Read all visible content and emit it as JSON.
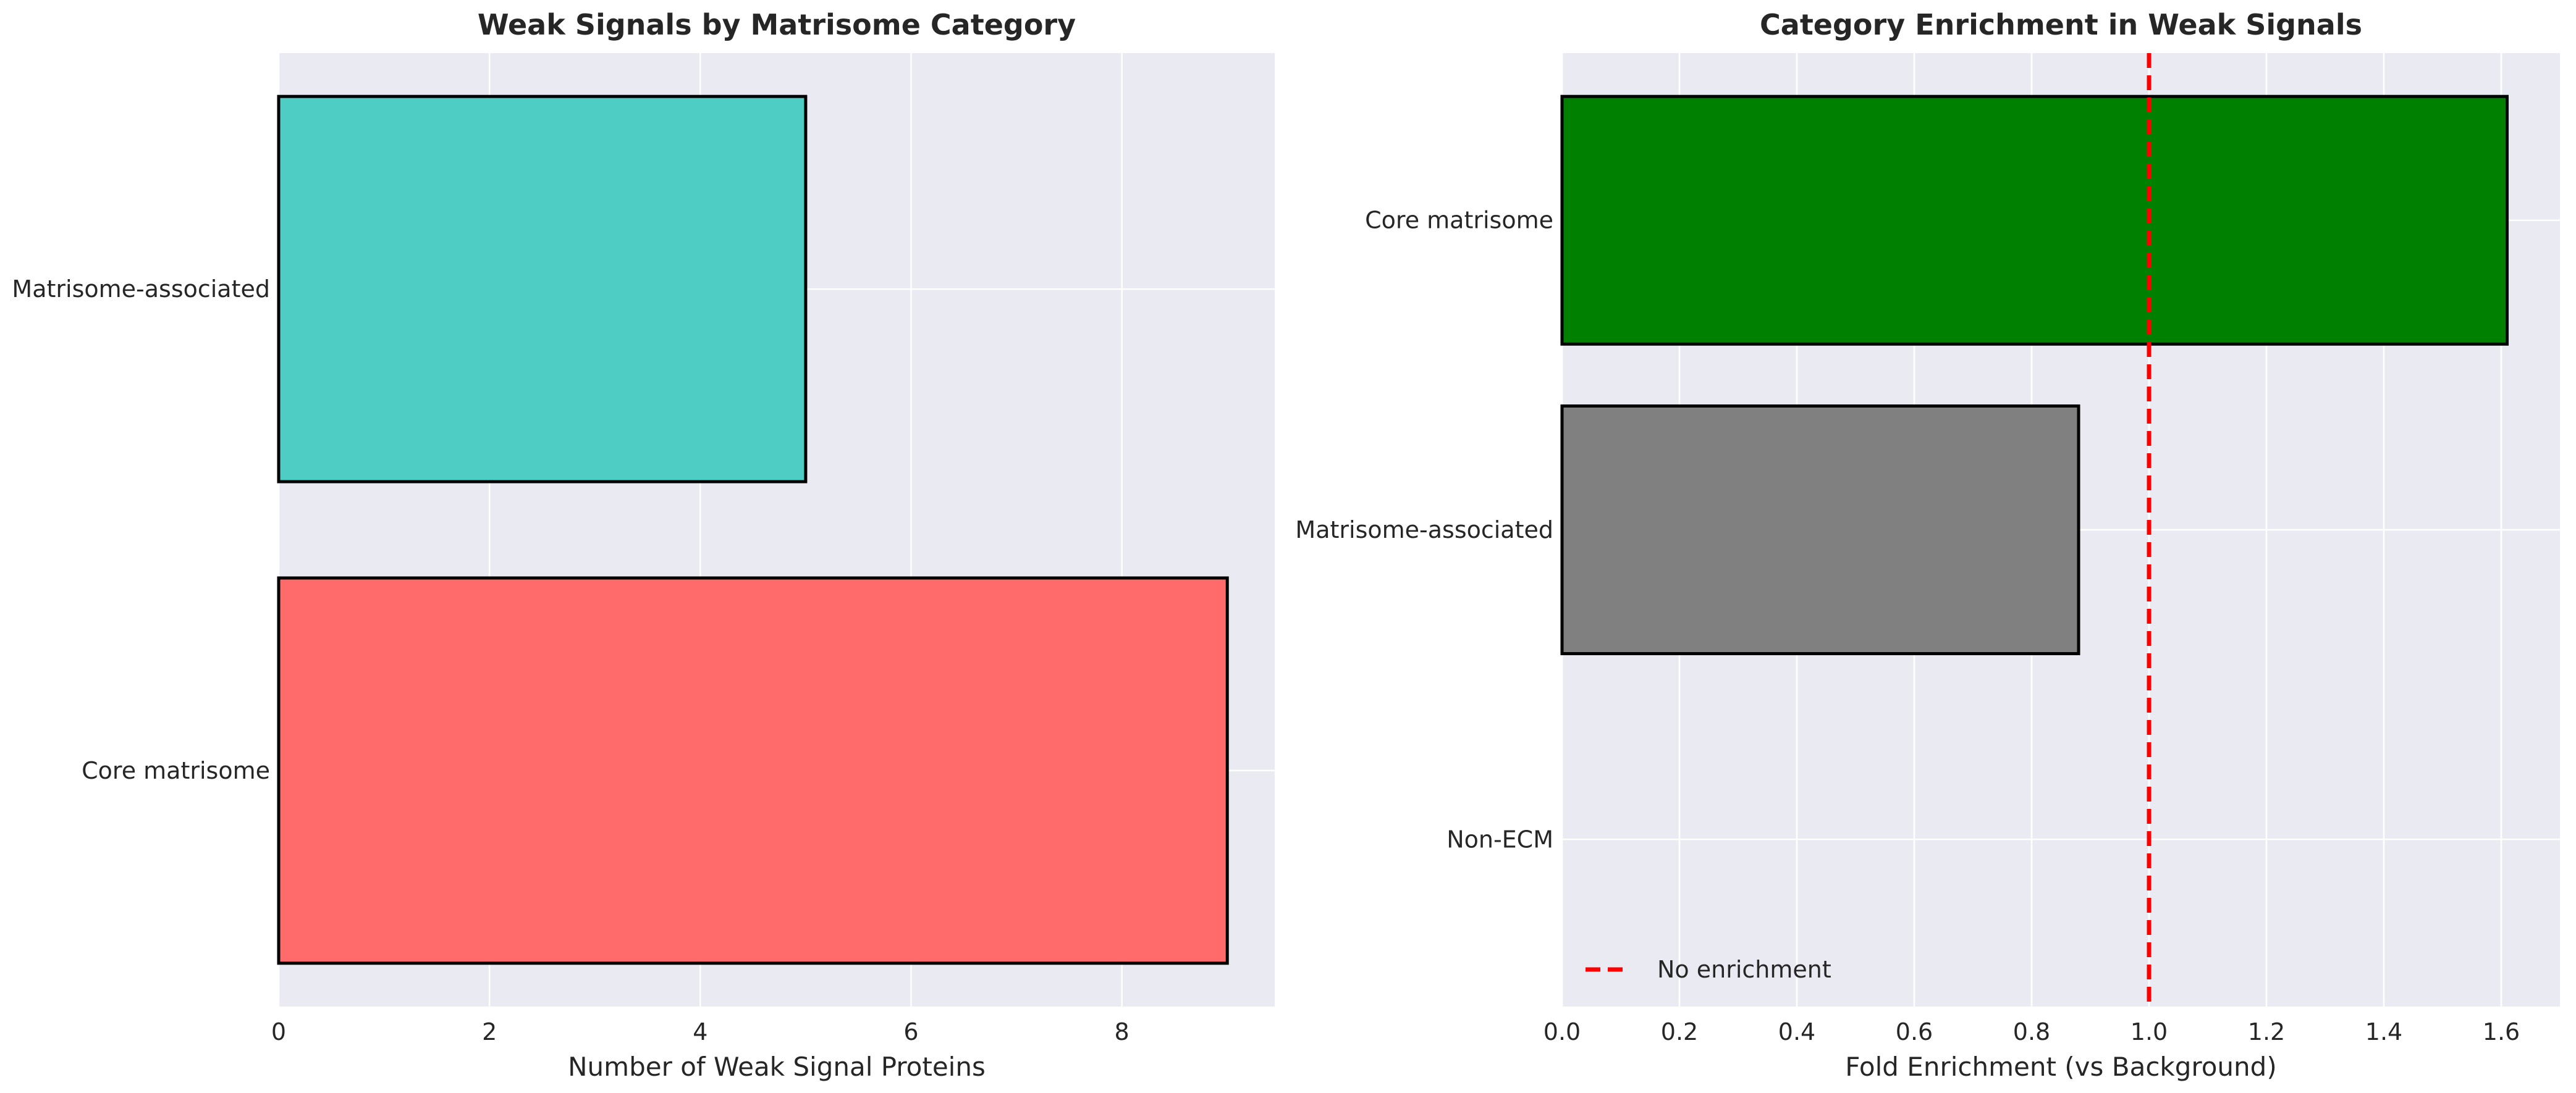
{
  "chart_data": [
    {
      "type": "bar",
      "orientation": "horizontal",
      "title": "Weak Signals by Matrisome Category",
      "xlabel": "Number of Weak Signal Proteins",
      "ylabel": "",
      "categories": [
        "Core matrisome",
        "Matrisome-associated"
      ],
      "values": [
        9,
        5
      ],
      "colors": [
        "#FF6B6B",
        "#4ECDC4"
      ],
      "xlim": [
        0,
        9.45
      ],
      "xticks": [
        0,
        2,
        4,
        6,
        8
      ],
      "xtick_labels": [
        "0",
        "2",
        "4",
        "6",
        "8"
      ],
      "grid": true
    },
    {
      "type": "bar",
      "orientation": "horizontal",
      "title": "Category Enrichment in Weak Signals",
      "xlabel": "Fold Enrichment (vs Background)",
      "ylabel": "",
      "categories": [
        "Non-ECM",
        "Matrisome-associated",
        "Core matrisome"
      ],
      "values": [
        0,
        0.88,
        1.61
      ],
      "colors": [
        "#808080",
        "#808080",
        "#008000"
      ],
      "xlim": [
        0,
        1.7
      ],
      "xticks": [
        0,
        0.2,
        0.4,
        0.6,
        0.8,
        1.0,
        1.2,
        1.4,
        1.6
      ],
      "xtick_labels": [
        "0.0",
        "0.2",
        "0.4",
        "0.6",
        "0.8",
        "1.0",
        "1.2",
        "1.4",
        "1.6"
      ],
      "reference_line": {
        "x": 1.0,
        "label": "No enrichment",
        "color": "#FF0000",
        "style": "dashed"
      },
      "legend": {
        "position": "lower-left",
        "entries": [
          "No enrichment"
        ]
      },
      "grid": true
    }
  ]
}
